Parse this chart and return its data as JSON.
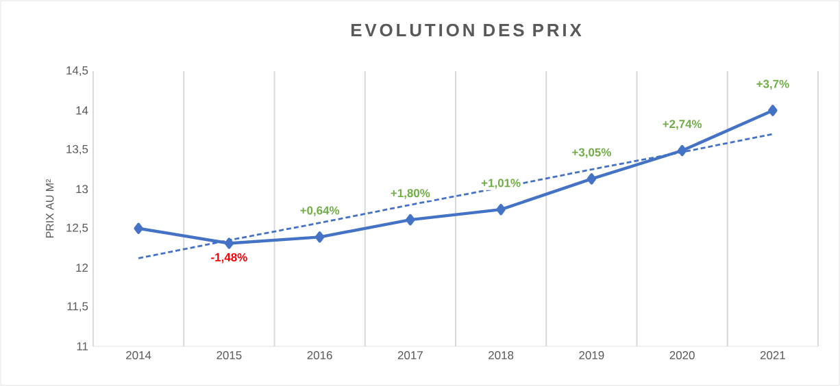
{
  "chart_data": {
    "type": "line",
    "title": "EVOLUTION DES PRIX",
    "ylabel": "PRIX AU M²",
    "categories": [
      "2014",
      "2015",
      "2016",
      "2017",
      "2018",
      "2019",
      "2020",
      "2021"
    ],
    "series": [
      {
        "color": "#4472c4",
        "values": [
          12.5,
          12.31,
          12.39,
          12.61,
          12.74,
          13.13,
          13.49,
          14.0
        ],
        "marker": "diamond",
        "line_style": "solid"
      },
      {
        "type": "line",
        "color": "#4472c4",
        "values": [
          12.12,
          12.35,
          12.57,
          12.8,
          13.02,
          13.25,
          13.47,
          13.7
        ],
        "marker": "none",
        "line_style": "dashed"
      }
    ],
    "ylim": [
      11,
      14.5
    ],
    "yticks": [
      11,
      {
        "value": 11.5,
        "label": "11,5"
      },
      12,
      {
        "value": 12.5,
        "label": "12,5"
      },
      13,
      {
        "value": 13.5,
        "label": "13,5"
      },
      14,
      {
        "value": 14.5,
        "label": "14,5"
      }
    ],
    "grid": "x",
    "annotations": [
      {
        "text": "-1,48%",
        "x": "2015",
        "y": 12.31
      },
      {
        "text": "+0,64%",
        "x": "2016",
        "y": 12.39
      },
      {
        "text": "+1,80%",
        "x": "2017",
        "y": 12.61
      },
      {
        "text": "+1,01%",
        "x": "2018",
        "y": 12.74
      },
      {
        "text": "+3,05%",
        "x": "2019",
        "y": 13.13
      },
      {
        "text": "+2,74%",
        "x": "2020",
        "y": 13.49
      },
      {
        "text": "+3,7%",
        "x": "2021",
        "y": 14.0
      }
    ]
  }
}
